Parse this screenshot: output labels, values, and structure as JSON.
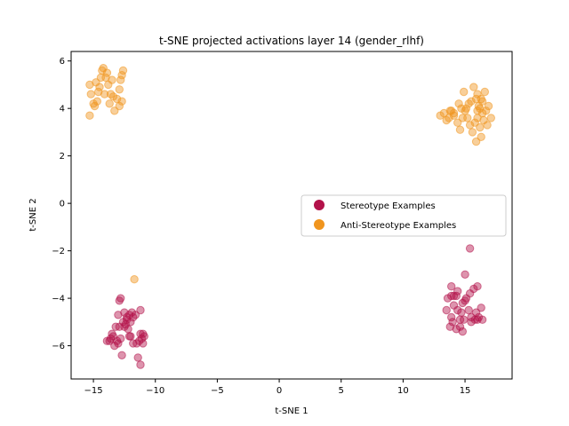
{
  "chart_data": {
    "type": "scatter",
    "title": "t-SNE projected activations layer 14 (gender_rlhf)",
    "xlabel": "t-SNE 1",
    "ylabel": "t-SNE 2",
    "xlim": [
      -16.8,
      18.8
    ],
    "ylim": [
      -7.4,
      6.4
    ],
    "xticks": [
      -15,
      -10,
      -5,
      0,
      5,
      10,
      15
    ],
    "yticks": [
      -6,
      -4,
      -2,
      0,
      2,
      4,
      6
    ],
    "xtick_labels": [
      "−15",
      "−10",
      "−5",
      "0",
      "5",
      "10",
      "15"
    ],
    "ytick_labels": [
      "−6",
      "−4",
      "−2",
      "0",
      "2",
      "4",
      "6"
    ],
    "grid": false,
    "legend_position": "center-right",
    "series": [
      {
        "name": "Stereotype Examples",
        "color": "#b3124a",
        "points": [
          [
            -13.4,
            -5.6
          ],
          [
            -13.0,
            -5.9
          ],
          [
            -12.8,
            -5.7
          ],
          [
            -12.5,
            -5.2
          ],
          [
            -12.3,
            -4.9
          ],
          [
            -12.1,
            -4.7
          ],
          [
            -11.8,
            -4.8
          ],
          [
            -11.6,
            -4.7
          ],
          [
            -11.2,
            -4.5
          ],
          [
            -11.0,
            -5.5
          ],
          [
            -11.1,
            -5.7
          ],
          [
            -11.3,
            -5.8
          ],
          [
            -11.5,
            -5.9
          ],
          [
            -12.0,
            -5.6
          ],
          [
            -12.2,
            -5.3
          ],
          [
            -12.6,
            -5.0
          ],
          [
            -13.0,
            -4.7
          ],
          [
            -12.9,
            -4.1
          ],
          [
            -12.8,
            -4.0
          ],
          [
            -13.5,
            -5.5
          ],
          [
            -13.6,
            -5.7
          ],
          [
            -13.9,
            -5.8
          ],
          [
            -13.7,
            -5.8
          ],
          [
            -13.2,
            -5.2
          ],
          [
            -12.9,
            -5.2
          ],
          [
            -12.4,
            -5.1
          ],
          [
            -12.1,
            -5.6
          ],
          [
            -11.8,
            -5.9
          ],
          [
            -11.9,
            -4.6
          ],
          [
            -12.3,
            -4.8
          ],
          [
            -12.7,
            -6.4
          ],
          [
            -11.4,
            -6.5
          ],
          [
            -11.2,
            -6.8
          ],
          [
            -11.0,
            -5.9
          ],
          [
            -10.9,
            -5.6
          ],
          [
            -11.2,
            -5.5
          ],
          [
            -12.5,
            -4.6
          ],
          [
            -12.0,
            -5.0
          ],
          [
            -13.1,
            -5.8
          ],
          [
            -13.3,
            -6.0
          ],
          [
            13.9,
            -3.5
          ],
          [
            14.4,
            -3.7
          ],
          [
            14.1,
            -3.9
          ],
          [
            13.6,
            -4.0
          ],
          [
            13.5,
            -4.5
          ],
          [
            13.9,
            -4.8
          ],
          [
            14.1,
            -4.3
          ],
          [
            14.4,
            -4.5
          ],
          [
            14.8,
            -4.2
          ],
          [
            15.0,
            -4.1
          ],
          [
            15.3,
            -4.5
          ],
          [
            15.5,
            -4.8
          ],
          [
            15.8,
            -4.9
          ],
          [
            16.0,
            -4.9
          ],
          [
            16.1,
            -4.8
          ],
          [
            15.9,
            -4.6
          ],
          [
            16.3,
            -4.4
          ],
          [
            16.0,
            -3.5
          ],
          [
            15.7,
            -3.6
          ],
          [
            15.4,
            -3.8
          ],
          [
            15.0,
            -3.0
          ],
          [
            15.4,
            -1.9
          ],
          [
            14.6,
            -5.2
          ],
          [
            14.8,
            -5.4
          ],
          [
            14.3,
            -5.3
          ],
          [
            14.0,
            -5.0
          ],
          [
            13.8,
            -5.2
          ],
          [
            14.9,
            -4.9
          ],
          [
            15.1,
            -4.0
          ],
          [
            14.7,
            -4.6
          ],
          [
            14.3,
            -3.9
          ],
          [
            13.9,
            -3.9
          ],
          [
            15.5,
            -5.0
          ],
          [
            16.4,
            -4.9
          ],
          [
            14.6,
            -4.9
          ]
        ]
      },
      {
        "name": "Anti-Stereotype Examples",
        "color": "#f0951e",
        "points": [
          [
            -15.3,
            5.0
          ],
          [
            -15.2,
            4.6
          ],
          [
            -14.9,
            4.1
          ],
          [
            -14.7,
            4.3
          ],
          [
            -14.5,
            4.9
          ],
          [
            -14.4,
            5.3
          ],
          [
            -14.2,
            5.7
          ],
          [
            -14.0,
            5.3
          ],
          [
            -13.8,
            5.0
          ],
          [
            -13.6,
            4.6
          ],
          [
            -13.4,
            4.5
          ],
          [
            -13.1,
            4.4
          ],
          [
            -12.9,
            4.8
          ],
          [
            -12.8,
            5.2
          ],
          [
            -12.6,
            5.6
          ],
          [
            -12.7,
            4.3
          ],
          [
            -12.9,
            4.1
          ],
          [
            -13.3,
            3.9
          ],
          [
            -13.7,
            4.2
          ],
          [
            -14.1,
            4.6
          ],
          [
            -14.6,
            4.7
          ],
          [
            -14.8,
            5.1
          ],
          [
            -15.0,
            4.2
          ],
          [
            -15.3,
            3.7
          ],
          [
            -13.9,
            5.5
          ],
          [
            -13.5,
            5.2
          ],
          [
            -14.3,
            5.6
          ],
          [
            -12.7,
            5.4
          ],
          [
            -11.7,
            -3.2
          ],
          [
            13.0,
            3.7
          ],
          [
            13.3,
            3.8
          ],
          [
            13.5,
            3.5
          ],
          [
            13.7,
            3.6
          ],
          [
            13.9,
            3.9
          ],
          [
            14.1,
            3.7
          ],
          [
            14.4,
            3.4
          ],
          [
            14.6,
            3.1
          ],
          [
            14.8,
            3.6
          ],
          [
            15.0,
            3.9
          ],
          [
            15.2,
            3.6
          ],
          [
            15.4,
            3.3
          ],
          [
            15.6,
            3.0
          ],
          [
            15.8,
            3.4
          ],
          [
            16.0,
            3.6
          ],
          [
            16.2,
            3.2
          ],
          [
            16.3,
            2.8
          ],
          [
            16.5,
            3.5
          ],
          [
            16.7,
            3.9
          ],
          [
            16.9,
            4.1
          ],
          [
            17.1,
            3.6
          ],
          [
            16.8,
            3.3
          ],
          [
            16.4,
            3.8
          ],
          [
            16.1,
            4.1
          ],
          [
            15.9,
            4.4
          ],
          [
            16.0,
            4.6
          ],
          [
            16.3,
            4.4
          ],
          [
            16.6,
            4.7
          ],
          [
            15.7,
            4.9
          ],
          [
            15.3,
            4.2
          ],
          [
            14.9,
            4.7
          ],
          [
            14.5,
            4.2
          ],
          [
            14.1,
            3.8
          ],
          [
            13.8,
            3.9
          ],
          [
            15.5,
            4.3
          ],
          [
            16.2,
            4.0
          ],
          [
            15.9,
            2.6
          ],
          [
            16.0,
            3.9
          ],
          [
            14.7,
            4.0
          ],
          [
            15.1,
            4.0
          ],
          [
            16.4,
            4.3
          ]
        ]
      }
    ]
  }
}
